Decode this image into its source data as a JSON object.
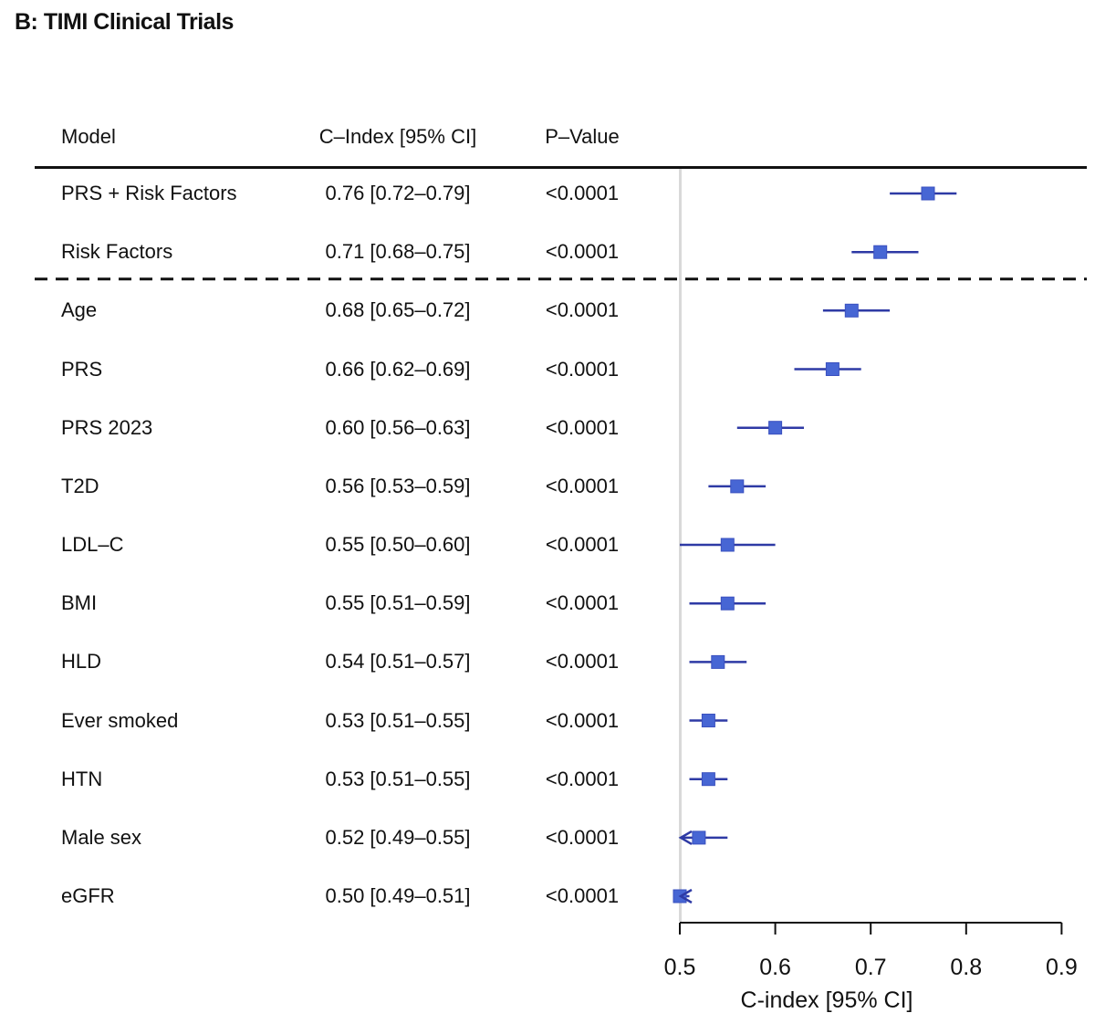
{
  "title": "B: TIMI Clinical Trials",
  "table": {
    "headers": {
      "model": "Model",
      "cindex": "C–Index [95% CI]",
      "pvalue": "P–Value"
    }
  },
  "chart_data": {
    "type": "forest",
    "xlabel": "C-index [95% CI]",
    "xlim": [
      0.5,
      0.9
    ],
    "xticks": [
      "0.5",
      "0.6",
      "0.7",
      "0.8",
      "0.9"
    ],
    "xtick_values": [
      0.5,
      0.6,
      0.7,
      0.8,
      0.9
    ],
    "reference_line": 0.5,
    "divider_after_index": 1,
    "colors": {
      "marker": "#4766d4",
      "marker_border": "#3a50bf",
      "ci_line": "#2e3aa5",
      "reference_line": "#d9d9d9",
      "axis": "#111111"
    },
    "rows": [
      {
        "model": "PRS + Risk Factors",
        "cindex": "0.76 [0.72–0.79]",
        "pvalue": "<0.0001",
        "est": 0.76,
        "lo": 0.72,
        "hi": 0.79
      },
      {
        "model": "Risk Factors",
        "cindex": "0.71 [0.68–0.75]",
        "pvalue": "<0.0001",
        "est": 0.71,
        "lo": 0.68,
        "hi": 0.75
      },
      {
        "model": "Age",
        "cindex": "0.68 [0.65–0.72]",
        "pvalue": "<0.0001",
        "est": 0.68,
        "lo": 0.65,
        "hi": 0.72
      },
      {
        "model": "PRS",
        "cindex": "0.66 [0.62–0.69]",
        "pvalue": "<0.0001",
        "est": 0.66,
        "lo": 0.62,
        "hi": 0.69
      },
      {
        "model": "PRS 2023",
        "cindex": "0.60 [0.56–0.63]",
        "pvalue": "<0.0001",
        "est": 0.6,
        "lo": 0.56,
        "hi": 0.63
      },
      {
        "model": "T2D",
        "cindex": "0.56 [0.53–0.59]",
        "pvalue": "<0.0001",
        "est": 0.56,
        "lo": 0.53,
        "hi": 0.59
      },
      {
        "model": "LDL–C",
        "cindex": "0.55 [0.50–0.60]",
        "pvalue": "<0.0001",
        "est": 0.55,
        "lo": 0.5,
        "hi": 0.6
      },
      {
        "model": "BMI",
        "cindex": "0.55 [0.51–0.59]",
        "pvalue": "<0.0001",
        "est": 0.55,
        "lo": 0.51,
        "hi": 0.59
      },
      {
        "model": "HLD",
        "cindex": "0.54 [0.51–0.57]",
        "pvalue": "<0.0001",
        "est": 0.54,
        "lo": 0.51,
        "hi": 0.57
      },
      {
        "model": "Ever smoked",
        "cindex": "0.53 [0.51–0.55]",
        "pvalue": "<0.0001",
        "est": 0.53,
        "lo": 0.51,
        "hi": 0.55
      },
      {
        "model": "HTN",
        "cindex": "0.53 [0.51–0.55]",
        "pvalue": "<0.0001",
        "est": 0.53,
        "lo": 0.51,
        "hi": 0.55
      },
      {
        "model": "Male sex",
        "cindex": "0.52 [0.49–0.55]",
        "pvalue": "<0.0001",
        "est": 0.52,
        "lo": 0.49,
        "hi": 0.55
      },
      {
        "model": "eGFR",
        "cindex": "0.50 [0.49–0.51]",
        "pvalue": "<0.0001",
        "est": 0.5,
        "lo": 0.49,
        "hi": 0.51
      }
    ]
  }
}
